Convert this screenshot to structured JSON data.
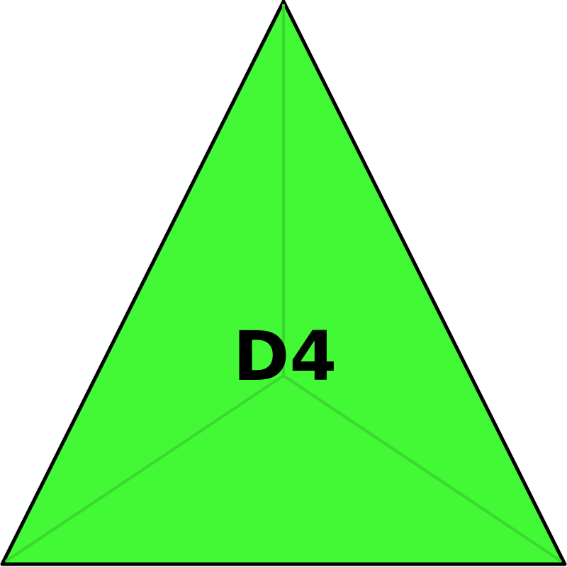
{
  "die": {
    "label": "D4",
    "face_color": "#43f936",
    "edge_color": "#000000",
    "inner_edge_color": "#3ad92f",
    "label_color": "#000000"
  }
}
